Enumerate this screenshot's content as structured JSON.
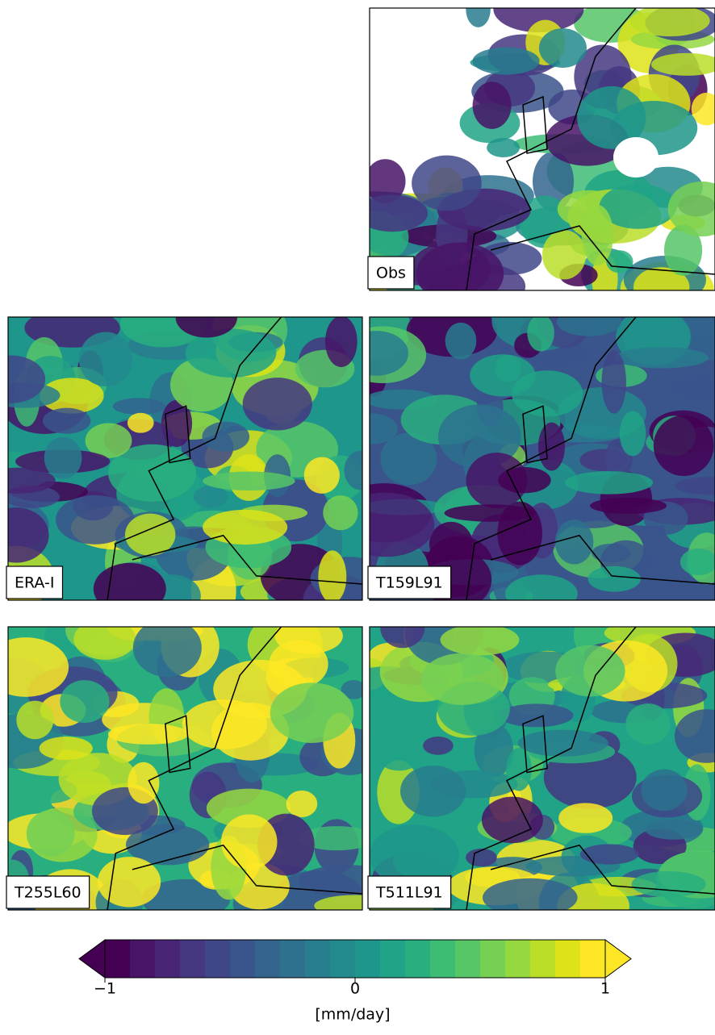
{
  "panels": [
    {
      "label": "Obs"
    },
    {
      "label": "ERA-I"
    },
    {
      "label": "T159L91"
    },
    {
      "label": "T255L60"
    },
    {
      "label": "T511L91"
    }
  ],
  "colorbar": {
    "lim": [
      -1,
      1
    ],
    "ticks": [
      {
        "value": -1,
        "label": "−1"
      },
      0,
      1
    ],
    "label": "[mm/day]",
    "colors": [
      "#440154",
      "#481467",
      "#482576",
      "#453781",
      "#3f4788",
      "#39558c",
      "#32648e",
      "#2d718e",
      "#287d8e",
      "#238a8d",
      "#1f968b",
      "#20a386",
      "#29af7f",
      "#3dbc74",
      "#56c667",
      "#75d054",
      "#95d840",
      "#bade28",
      "#dde318",
      "#fde725"
    ]
  }
}
